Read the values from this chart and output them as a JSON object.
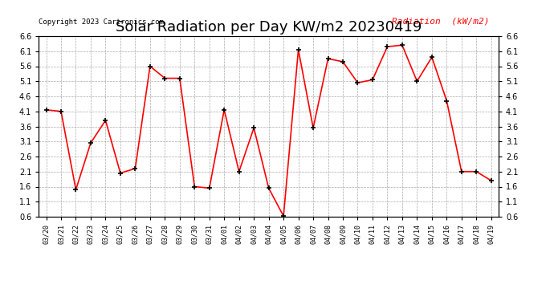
{
  "title": "Solar Radiation per Day KW/m2 20230419",
  "copyright_text": "Copyright 2023 Cartronics.com",
  "legend_label": "Radiation  (kW/m2)",
  "dates": [
    "03/20",
    "03/21",
    "03/22",
    "03/23",
    "03/24",
    "03/25",
    "03/26",
    "03/27",
    "03/28",
    "03/29",
    "03/30",
    "03/31",
    "04/01",
    "04/02",
    "04/03",
    "04/04",
    "04/05",
    "04/06",
    "04/07",
    "04/08",
    "04/09",
    "04/10",
    "04/11",
    "04/12",
    "04/13",
    "04/14",
    "04/15",
    "04/16",
    "04/17",
    "04/18",
    "04/19"
  ],
  "values": [
    4.15,
    4.1,
    1.5,
    3.05,
    3.8,
    2.05,
    2.2,
    5.6,
    5.2,
    5.2,
    1.6,
    1.55,
    4.15,
    2.1,
    3.55,
    1.55,
    0.62,
    6.15,
    3.55,
    5.85,
    5.75,
    5.05,
    5.15,
    6.25,
    6.3,
    5.1,
    5.9,
    4.45,
    2.1,
    2.1,
    1.8
  ],
  "line_color": "red",
  "marker_color": "black",
  "background_color": "#ffffff",
  "grid_color": "#aaaaaa",
  "title_fontsize": 13,
  "ylim": [
    0.6,
    6.6
  ],
  "yticks": [
    0.6,
    1.1,
    1.6,
    2.1,
    2.6,
    3.1,
    3.6,
    4.1,
    4.6,
    5.1,
    5.6,
    6.1,
    6.6
  ]
}
